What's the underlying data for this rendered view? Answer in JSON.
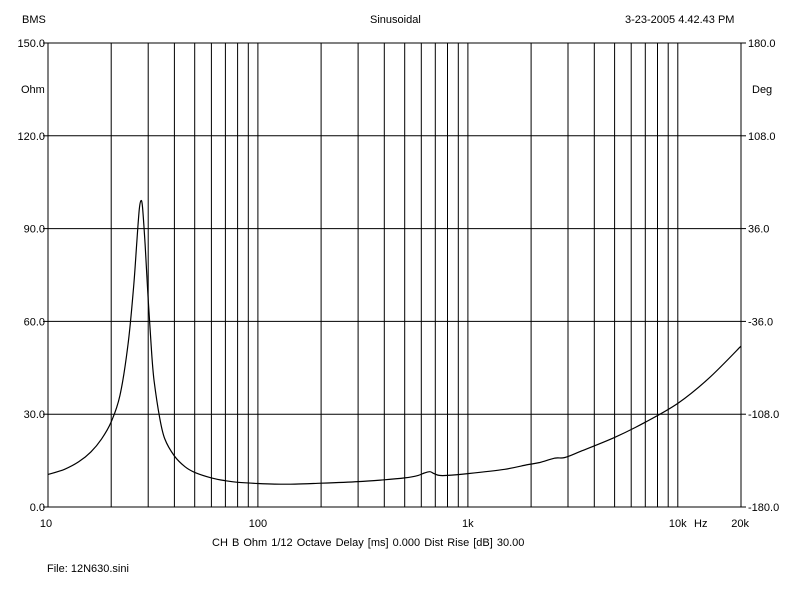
{
  "header": {
    "left": "BMS",
    "center": "Sinusoidal",
    "right": "3-23-2005 4.42.43 PM"
  },
  "footer": {
    "settings": "CH B   Ohm   1/12 Octave   Delay [ms] 0.000   Dist Rise [dB] 30.00",
    "file": "File: 12N630.sini"
  },
  "chart_data": {
    "type": "line",
    "title": "",
    "xscale": "log",
    "xlim": [
      10,
      20000
    ],
    "ylim": [
      0,
      150
    ],
    "y2lim": [
      -180,
      180
    ],
    "xlabel": "Hz",
    "ylabel": "Ohm",
    "y2label": "Deg",
    "grid": true,
    "legend": "none",
    "line_color": "#000000",
    "x_ticks": [
      {
        "value": 10,
        "label": "10"
      },
      {
        "value": 100,
        "label": "100"
      },
      {
        "value": 1000,
        "label": "1k"
      },
      {
        "value": 10000,
        "label": "10k"
      },
      {
        "value": 20000,
        "label": "20k"
      }
    ],
    "y_ticks": [
      {
        "value": 0,
        "label": "0.0"
      },
      {
        "value": 30,
        "label": "30.0"
      },
      {
        "value": 60,
        "label": "60.0"
      },
      {
        "value": 90,
        "label": "90.0"
      },
      {
        "value": 120,
        "label": "120.0"
      },
      {
        "value": 150,
        "label": "150.0"
      }
    ],
    "y2_ticks": [
      {
        "value": -180,
        "label": "-180.0"
      },
      {
        "value": -108,
        "label": "-108.0"
      },
      {
        "value": -36,
        "label": "-36.0"
      },
      {
        "value": 36,
        "label": "36.0"
      },
      {
        "value": 108,
        "label": "108.0"
      },
      {
        "value": 180,
        "label": "180.0"
      }
    ],
    "series": [
      {
        "x": [
          10,
          12,
          14,
          16,
          18,
          20,
          22,
          24,
          25.5,
          26.5,
          27.2,
          27.7,
          28.2,
          29,
          30,
          31,
          32,
          34,
          36,
          40,
          45,
          50,
          60,
          70,
          80,
          100,
          120,
          150,
          200,
          300,
          400,
          500,
          580,
          620,
          660,
          690,
          730,
          800,
          1000,
          1500,
          1900,
          2200,
          2600,
          2900,
          3500,
          5000,
          7000,
          10000,
          14000,
          20000
        ],
        "y": [
          10.5,
          12.2,
          14.6,
          17.8,
          22,
          27.5,
          36,
          52,
          70,
          86,
          96,
          99,
          97,
          85,
          67,
          52,
          41,
          29,
          22,
          16.5,
          13,
          11.2,
          9.4,
          8.5,
          8,
          7.6,
          7.4,
          7.4,
          7.7,
          8.2,
          8.8,
          9.4,
          10.2,
          11,
          11.4,
          10.8,
          10.2,
          10.2,
          10.8,
          12.2,
          13.6,
          14.4,
          15.8,
          16,
          18.2,
          22.5,
          27.4,
          33.5,
          41.5,
          52
        ]
      }
    ]
  }
}
